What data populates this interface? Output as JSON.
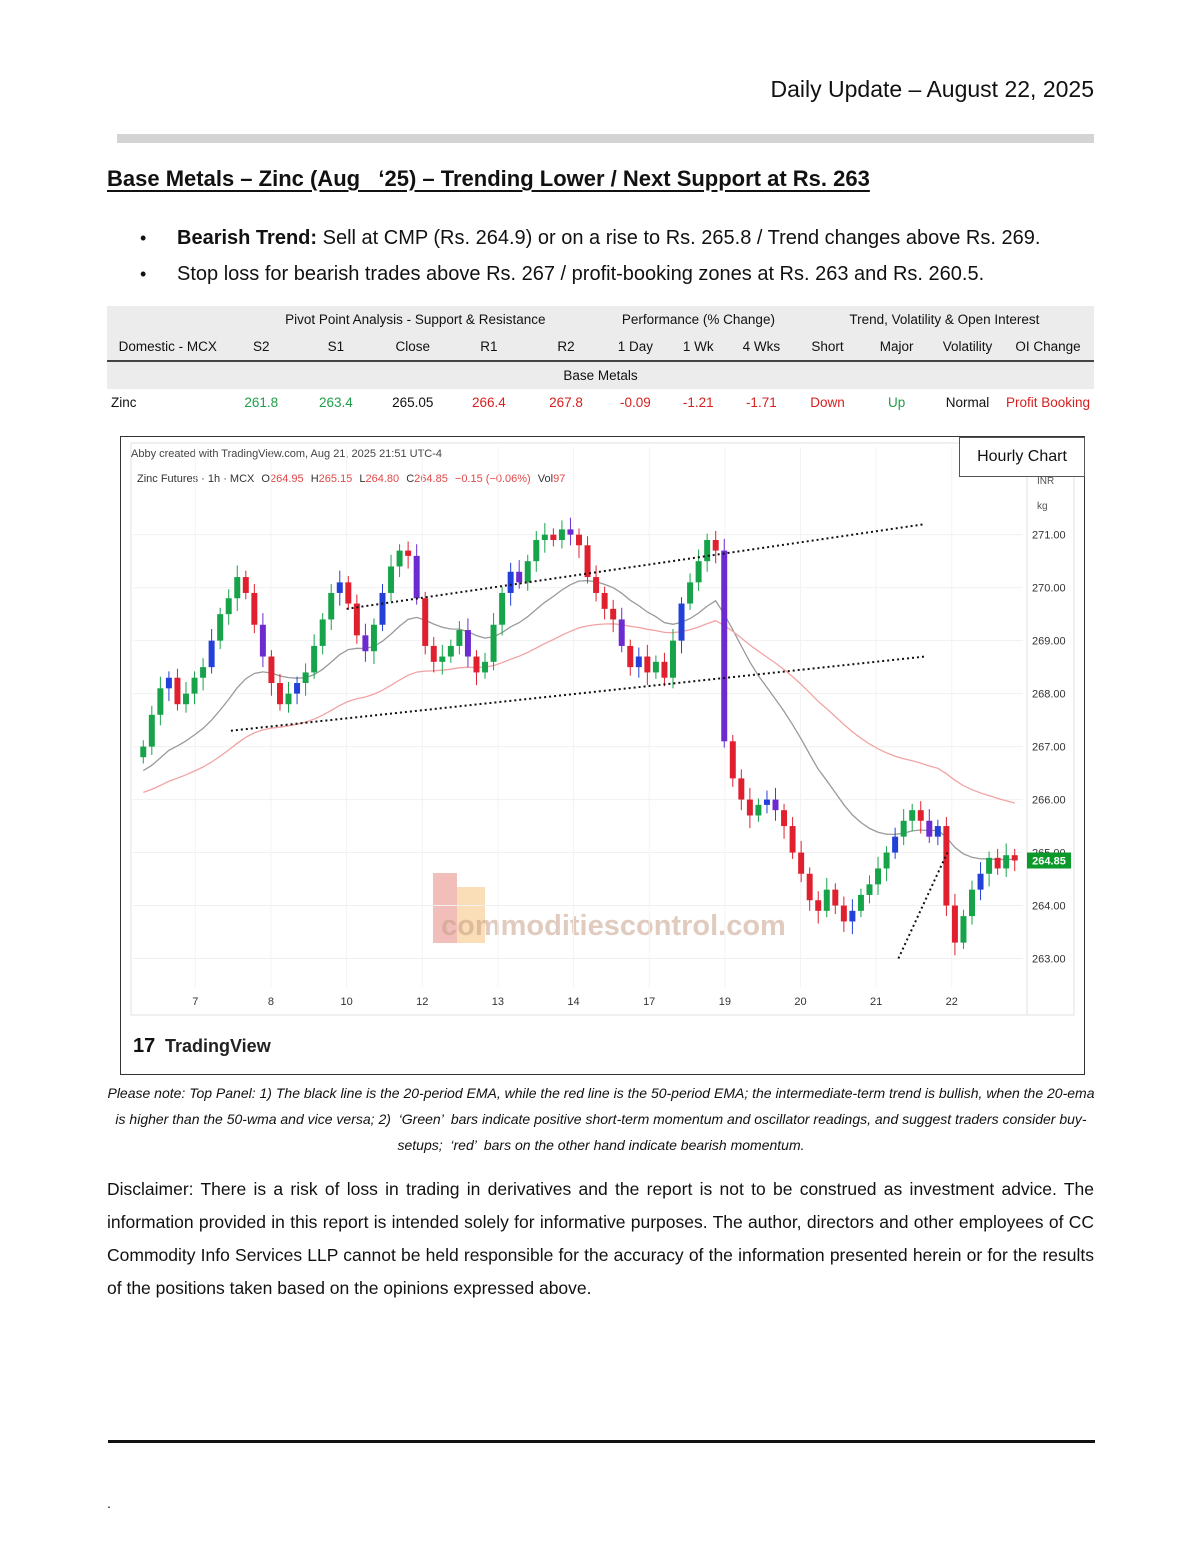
{
  "header": {
    "date": "Daily Update – August 22, 2025"
  },
  "title": "Base Metals – Zinc (Aug   ‘25) – Trending Lower / Next Support at Rs. 263",
  "bullets": [
    {
      "bold": "Bearish Trend:",
      "text": " Sell at CMP (Rs. 264.9) or on a rise to Rs. 265.8 / Trend changes above Rs. 269."
    },
    {
      "bold": "",
      "text": "Stop loss for bearish trades above Rs. 267 / profit-booking zones at Rs. 263 and Rs. 260.5."
    }
  ],
  "table": {
    "groups": {
      "pivot": "Pivot Point Analysis - Support & Resistance",
      "performance": "Performance (% Change)",
      "trend": "Trend, Volatility & Open Interest"
    },
    "headers": [
      "Domestic - MCX",
      "S2",
      "S1",
      "Close",
      "R1",
      "R2",
      "1 Day",
      "1 Wk",
      "4 Wks",
      "Short",
      "Major",
      "Volatility",
      "OI Change"
    ],
    "section": "Base Metals",
    "row": [
      "Zinc",
      "261.8",
      "263.4",
      "265.05",
      "266.4",
      "267.8",
      "-0.09",
      "-1.21",
      "-1.71",
      "Down",
      "Up",
      "Normal",
      "Profit Booking"
    ],
    "colors": {
      "green": "#1f9e4a",
      "red": "#d61f1f"
    }
  },
  "chart": {
    "hourly_label": "Hourly Chart",
    "created": "Abby created with TradingView.com, Aug 21, 2025 21:51 UTC-4",
    "ohlc": {
      "symbol": "Zinc Futures · 1h · MCX",
      "o_label": "O",
      "o": "264.95",
      "h_label": "H",
      "h": "265.15",
      "l_label": "L",
      "l": "264.80",
      "c_label": "C",
      "c": "264.85",
      "change": "−0.15 (−0.06%)",
      "vol_label": "Vol",
      "vol": "97"
    },
    "unit": [
      "INR",
      "kg"
    ],
    "last_price": "264.85",
    "watermark": "commoditiescontrol.com",
    "brand": "TradingView",
    "chart_data": {
      "type": "candlestick",
      "y_ticks": [
        "271.00",
        "270.00",
        "269.00",
        "268.00",
        "267.00",
        "266.00",
        "265.00",
        "264.00",
        "263.00"
      ],
      "ylim": [
        262.5,
        271.9
      ],
      "x_ticks": [
        "7",
        "8",
        "10",
        "12",
        "13",
        "14",
        "17",
        "19",
        "20",
        "21",
        "22"
      ],
      "series": [
        {
          "name": "20-period EMA",
          "color": "#9a9a9a"
        },
        {
          "name": "50-period EMA",
          "color": "#f2a3a3"
        }
      ],
      "closes": [
        267.0,
        267.6,
        268.1,
        268.3,
        267.8,
        268.0,
        268.3,
        268.5,
        269.0,
        269.5,
        269.8,
        270.2,
        269.9,
        269.3,
        268.7,
        268.2,
        267.8,
        268.0,
        268.2,
        268.4,
        268.9,
        269.4,
        269.9,
        270.1,
        269.7,
        269.1,
        268.8,
        269.3,
        269.9,
        270.4,
        270.7,
        270.6,
        269.8,
        268.9,
        268.6,
        268.7,
        268.9,
        269.2,
        268.7,
        268.4,
        268.6,
        269.3,
        269.9,
        270.3,
        270.1,
        270.5,
        270.9,
        271.0,
        270.9,
        271.1,
        271.0,
        270.8,
        270.2,
        269.9,
        269.6,
        269.4,
        268.9,
        268.5,
        268.7,
        268.4,
        268.6,
        268.3,
        269.0,
        269.7,
        270.1,
        270.5,
        270.9,
        270.7,
        267.1,
        266.4,
        266.0,
        265.7,
        265.9,
        266.0,
        265.8,
        265.5,
        265.0,
        264.6,
        264.1,
        263.9,
        264.3,
        264.0,
        263.7,
        263.9,
        264.2,
        264.4,
        264.7,
        265.0,
        265.3,
        265.6,
        265.8,
        265.6,
        265.3,
        265.5,
        264.0,
        263.3,
        263.8,
        264.3,
        264.6,
        264.9,
        264.7,
        264.95,
        264.85
      ],
      "trendlines": [
        {
          "from": [
            0.24,
            269.6
          ],
          "to": [
            0.89,
            271.2
          ]
        },
        {
          "from": [
            0.11,
            267.3
          ],
          "to": [
            0.89,
            268.7
          ]
        },
        {
          "from": [
            0.86,
            263.0
          ],
          "to": [
            0.915,
            265.0
          ]
        }
      ]
    }
  },
  "note": "Please note: Top Panel: 1) The black line is the 20-period EMA, while the red line is the 50-period EMA; the intermediate-term trend is bullish, when the 20-ema is higher than the 50-wma and vice versa; 2)  ‘Green’  bars indicate positive short-term momentum and oscillator readings, and suggest traders consider buy-setups;  ‘red’  bars on the other hand indicate bearish momentum.",
  "disclaimer": "Disclaimer: There is a risk of loss in trading in derivatives and the report is not to be construed as investment advice. The information provided in this report is intended solely for informative purposes. The author, directors and other employees of CC Commodity Info Services LLP cannot be held responsible for the accuracy of the information presented herein or for the results of the positions taken based on the opinions expressed above.",
  "footer": {
    "mark": "."
  }
}
